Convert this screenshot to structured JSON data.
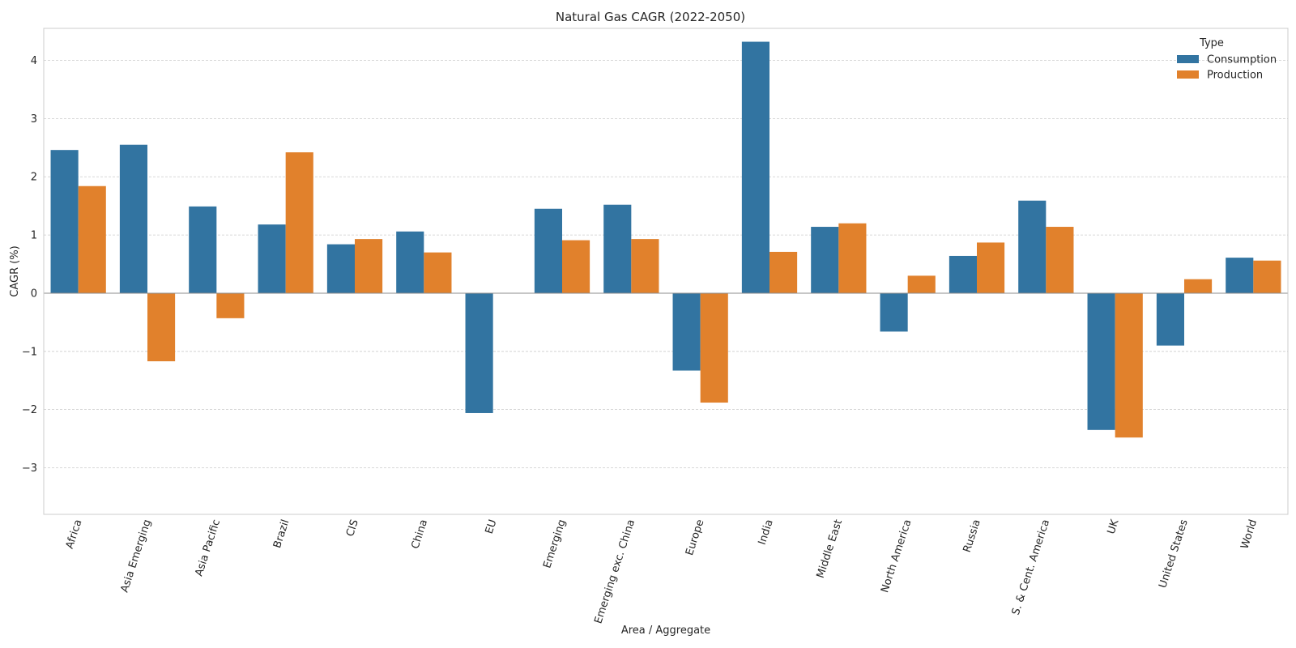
{
  "chart_data": {
    "type": "bar",
    "title": "Natural Gas CAGR (2022-2050)",
    "xlabel": "Area / Aggregate",
    "ylabel": "CAGR (%)",
    "ylim": [
      -3.8,
      4.55
    ],
    "yticks": [
      -3,
      -2,
      -1,
      0,
      1,
      2,
      3,
      4
    ],
    "ytick_labels": [
      "−3",
      "−2",
      "−1",
      "0",
      "1",
      "2",
      "3",
      "4"
    ],
    "grid": true,
    "legend_title": "Type",
    "legend_position": "top-right",
    "categories": [
      "Africa",
      "Asia Emerging",
      "Asia Pacific",
      "Brazil",
      "CIS",
      "China",
      "EU",
      "Emerging",
      "Emerging exc. China",
      "Europe",
      "India",
      "Middle East",
      "North America",
      "Russia",
      "S. & Cent. America",
      "UK",
      "United States",
      "World"
    ],
    "series": [
      {
        "name": "Consumption",
        "color": "#3274a1",
        "values": [
          2.46,
          2.55,
          1.49,
          1.18,
          0.84,
          1.06,
          -2.06,
          1.45,
          1.52,
          -1.33,
          4.32,
          1.14,
          -0.66,
          0.64,
          1.59,
          -2.35,
          -0.9,
          0.61
        ]
      },
      {
        "name": "Production",
        "color": "#e1812c",
        "values": [
          1.84,
          -1.17,
          -0.43,
          2.42,
          0.93,
          0.7,
          0.0,
          0.91,
          0.93,
          -1.88,
          0.71,
          1.2,
          0.3,
          0.87,
          1.14,
          -2.48,
          0.24,
          0.56
        ]
      }
    ]
  }
}
